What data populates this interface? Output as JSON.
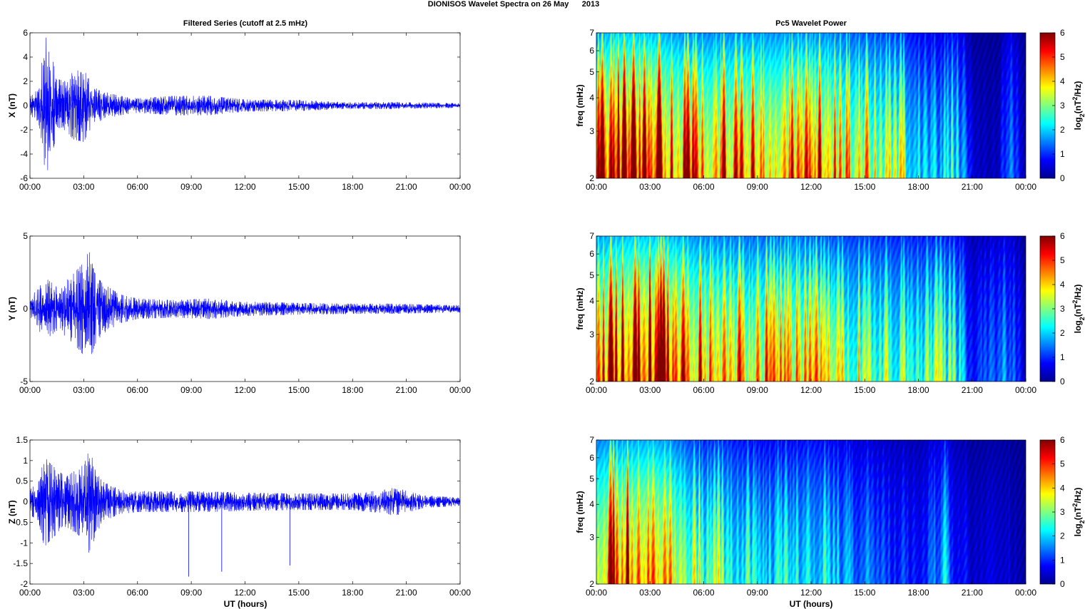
{
  "figure": {
    "suptitle": "DIONISOS Wavelet Spectra on 26 May      2013"
  },
  "chart_data": [
    {
      "type": "line",
      "title": "Filtered Series (cutoff at 2.5 mHz)",
      "xlabel": "",
      "ylabel": "X (nT)",
      "ylim": [
        -6,
        6
      ],
      "yticks": [
        "-6",
        "-4",
        "-2",
        "0",
        "2",
        "4",
        "6"
      ],
      "xticks": [
        "00:00",
        "03:00",
        "06:00",
        "09:00",
        "12:00",
        "15:00",
        "18:00",
        "21:00",
        "00:00"
      ],
      "xlim_hours": [
        0,
        24
      ],
      "color": "#0000ff",
      "envelope_hours": [
        0,
        0.5,
        0.7,
        0.9,
        1.1,
        1.5,
        2.0,
        2.4,
        3.0,
        3.5,
        4.0,
        5.0,
        6.0,
        8.0,
        10.0,
        12.0,
        15.0,
        18.0,
        20.0,
        24.0
      ],
      "envelope_amp_nT": [
        0.8,
        1.5,
        4.2,
        5.6,
        5.0,
        2.2,
        2.0,
        2.8,
        3.0,
        1.6,
        1.2,
        0.8,
        0.6,
        0.8,
        0.8,
        0.5,
        0.45,
        0.25,
        0.3,
        0.18
      ],
      "spikes": []
    },
    {
      "type": "line",
      "title": "",
      "xlabel": "",
      "ylabel": "Y (nT)",
      "ylim": [
        -5,
        5
      ],
      "yticks": [
        "-5",
        "0",
        "5"
      ],
      "xticks": [
        "00:00",
        "03:00",
        "06:00",
        "09:00",
        "12:00",
        "15:00",
        "18:00",
        "21:00",
        "00:00"
      ],
      "xlim_hours": [
        0,
        24
      ],
      "color": "#0000ff",
      "envelope_hours": [
        0,
        0.7,
        1.0,
        1.5,
        2.0,
        2.5,
        3.0,
        3.3,
        3.6,
        4.0,
        5.0,
        6.0,
        8.0,
        10.0,
        12.0,
        15.0,
        18.0,
        20.0,
        24.0
      ],
      "envelope_amp_nT": [
        0.8,
        1.8,
        2.0,
        1.5,
        1.9,
        2.5,
        3.2,
        4.0,
        2.5,
        1.8,
        1.0,
        0.7,
        0.6,
        0.7,
        0.5,
        0.4,
        0.35,
        0.35,
        0.25
      ],
      "spikes": []
    },
    {
      "type": "line",
      "title": "",
      "xlabel": "UT (hours)",
      "ylabel": "Z (nT)",
      "ylim": [
        -2,
        1.5
      ],
      "yticks": [
        "-2",
        "-1.5",
        "-1",
        "-0.5",
        "0",
        "0.5",
        "1",
        "1.5"
      ],
      "xticks": [
        "00:00",
        "03:00",
        "06:00",
        "09:00",
        "12:00",
        "15:00",
        "18:00",
        "21:00",
        "00:00"
      ],
      "xlim_hours": [
        0,
        24
      ],
      "color": "#0000ff",
      "envelope_hours": [
        0,
        0.5,
        0.8,
        1.2,
        2.0,
        3.0,
        3.3,
        4.0,
        5.0,
        6.0,
        8.0,
        10.0,
        12.0,
        15.0,
        18.0,
        20.0,
        20.3,
        22.0,
        24.0
      ],
      "envelope_amp_nT": [
        0.3,
        0.5,
        1.1,
        0.9,
        0.6,
        0.9,
        1.25,
        0.5,
        0.3,
        0.25,
        0.25,
        0.25,
        0.22,
        0.2,
        0.2,
        0.3,
        0.35,
        0.15,
        0.1
      ],
      "spikes": [
        {
          "hour": 8.85,
          "value": -1.82
        },
        {
          "hour": 10.7,
          "value": -1.7
        },
        {
          "hour": 14.5,
          "value": -1.55
        }
      ]
    },
    {
      "type": "heatmap",
      "title": "Pc5 Wavelet Power",
      "xlabel": "",
      "ylabel": "freq (mHz)",
      "yticks": [
        "2",
        "3",
        "4",
        "5",
        "6",
        "7"
      ],
      "ylim_mHz": [
        2,
        7
      ],
      "y_scale": "log",
      "xticks": [
        "00:00",
        "03:00",
        "06:00",
        "09:00",
        "12:00",
        "15:00",
        "18:00",
        "21:00",
        "00:00"
      ],
      "xlim_hours": [
        0,
        24
      ],
      "colorbar_label": "log2(nT2/Hz)",
      "colorbar_ticks": [
        "0",
        "1",
        "2",
        "3",
        "4",
        "5",
        "6"
      ],
      "clim": [
        0,
        6
      ],
      "colormap": "jet",
      "activity_hours": [
        0,
        0.5,
        1.0,
        2.0,
        3.0,
        4.0,
        5.0,
        7.0,
        9.0,
        11.0,
        13.0,
        14.0,
        16.0,
        17.0,
        18.0,
        19.0,
        20.0,
        21.0,
        22.5,
        23.0,
        24.0
      ],
      "activity_level": [
        5.5,
        6.5,
        7.0,
        7.0,
        6.8,
        6.3,
        5.6,
        5.6,
        5.8,
        5.8,
        5.5,
        4.8,
        4.2,
        3.8,
        2.6,
        2.2,
        2.8,
        0.5,
        0.4,
        2.0,
        0.3
      ]
    },
    {
      "type": "heatmap",
      "title": "",
      "xlabel": "",
      "ylabel": "freq (mHz)",
      "yticks": [
        "2",
        "3",
        "4",
        "5",
        "6",
        "7"
      ],
      "ylim_mHz": [
        2,
        7
      ],
      "y_scale": "log",
      "xticks": [
        "00:00",
        "03:00",
        "06:00",
        "09:00",
        "12:00",
        "15:00",
        "18:00",
        "21:00",
        "00:00"
      ],
      "xlim_hours": [
        0,
        24
      ],
      "colorbar_label": "log2(nT2/Hz)",
      "colorbar_ticks": [
        "0",
        "1",
        "2",
        "3",
        "4",
        "5",
        "6"
      ],
      "clim": [
        0,
        6
      ],
      "colormap": "jet",
      "activity_hours": [
        0,
        1.0,
        2.0,
        3.0,
        4.0,
        5.0,
        6.0,
        7.0,
        9.0,
        11.0,
        12.0,
        14.0,
        16.0,
        18.0,
        19.0,
        20.0,
        21.0,
        23.0,
        24.0
      ],
      "activity_level": [
        5.8,
        6.6,
        7.0,
        7.0,
        6.8,
        6.0,
        5.4,
        5.2,
        4.8,
        5.2,
        4.6,
        4.0,
        3.6,
        3.2,
        3.4,
        3.0,
        1.0,
        1.8,
        0.3
      ]
    },
    {
      "type": "heatmap",
      "title": "",
      "xlabel": "UT (hours)",
      "ylabel": "freq (mHz)",
      "yticks": [
        "2",
        "3",
        "4",
        "5",
        "6",
        "7"
      ],
      "ylim_mHz": [
        2,
        7
      ],
      "y_scale": "log",
      "xticks": [
        "00:00",
        "03:00",
        "06:00",
        "09:00",
        "12:00",
        "15:00",
        "18:00",
        "21:00",
        "00:00"
      ],
      "xlim_hours": [
        0,
        24
      ],
      "colorbar_label": "log2(nT2/Hz)",
      "colorbar_ticks": [
        "0",
        "1",
        "2",
        "3",
        "4",
        "5",
        "6"
      ],
      "clim": [
        0,
        6
      ],
      "colormap": "jet",
      "activity_hours": [
        0,
        1.0,
        2.0,
        3.0,
        4.0,
        5.0,
        6.0,
        7.0,
        9.0,
        11.0,
        12.0,
        14.0,
        16.0,
        18.0,
        19.5,
        20.0,
        21.0,
        22.5,
        24.0
      ],
      "activity_level": [
        5.5,
        6.0,
        6.2,
        6.5,
        5.8,
        4.4,
        3.4,
        3.5,
        2.6,
        2.6,
        3.0,
        2.0,
        1.4,
        1.0,
        2.2,
        1.2,
        0.6,
        0.8,
        0.2
      ]
    }
  ]
}
